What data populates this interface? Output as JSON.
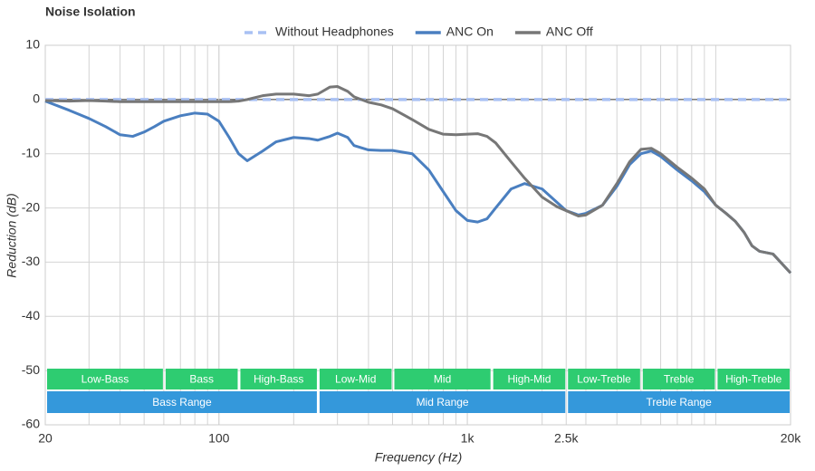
{
  "chart_data": {
    "type": "line",
    "title": "Noise Isolation",
    "xlabel": "Frequency (Hz)",
    "ylabel": "Reduction (dB)",
    "xscale": "log",
    "minor_grid": true,
    "grid": true,
    "xlim": [
      20,
      20000
    ],
    "xticks": [
      20,
      100,
      {
        "value": 1000,
        "label": "1k"
      },
      {
        "value": 2500,
        "label": "2.5k"
      },
      {
        "value": 20000,
        "label": "20k"
      }
    ],
    "ylim": [
      -60,
      10
    ],
    "yticks": [
      10,
      0,
      -10,
      -20,
      -30,
      -40,
      -50,
      -60
    ],
    "legend": "top",
    "x": [
      20,
      25,
      30,
      35,
      40,
      45,
      50,
      55,
      60,
      70,
      80,
      90,
      100,
      110,
      120,
      130,
      150,
      170,
      200,
      230,
      250,
      280,
      300,
      330,
      350,
      400,
      450,
      500,
      600,
      700,
      800,
      900,
      1000,
      1100,
      1200,
      1300,
      1500,
      1700,
      2000,
      2300,
      2500,
      2800,
      3000,
      3500,
      4000,
      4500,
      5000,
      5500,
      6000,
      7000,
      8000,
      9000,
      10000,
      11000,
      12000,
      13000,
      14000,
      15000,
      17000,
      20000
    ],
    "series": [
      {
        "name": "Without Headphones",
        "color": "#a9c1f3",
        "dashed": true,
        "values": [
          0,
          0,
          0,
          0,
          0,
          0,
          0,
          0,
          0,
          0,
          0,
          0,
          0,
          0,
          0,
          0,
          0,
          0,
          0,
          0,
          0,
          0,
          0,
          0,
          0,
          0,
          0,
          0,
          0,
          0,
          0,
          0,
          0,
          0,
          0,
          0,
          0,
          0,
          0,
          0,
          0,
          0,
          0,
          0,
          0,
          0,
          0,
          0,
          0,
          0,
          0,
          0,
          0,
          0,
          0,
          0,
          0,
          0,
          0,
          0
        ]
      },
      {
        "name": "ANC On",
        "color": "#4a7fc0",
        "values": [
          -0.3,
          -2,
          -3.5,
          -5,
          -6.5,
          -6.8,
          -6,
          -5,
          -4,
          -3,
          -2.5,
          -2.7,
          -4,
          -7,
          -10,
          -11.3,
          -9.5,
          -7.8,
          -7,
          -7.2,
          -7.5,
          -6.8,
          -6.2,
          -7,
          -8.5,
          -9.3,
          -9.4,
          -9.4,
          -10,
          -13,
          -17,
          -20.5,
          -22.3,
          -22.6,
          -22,
          -20,
          -16.5,
          -15.5,
          -16.5,
          -19,
          -20.5,
          -21.3,
          -21,
          -19.5,
          -16,
          -12,
          -10,
          -9.5,
          -10.5,
          -13,
          -15,
          -17,
          -19.5,
          -21,
          -22.5,
          -24.5,
          -27,
          -28,
          -28.5,
          -32
        ]
      },
      {
        "name": "ANC Off",
        "color": "#777777",
        "values": [
          -0.2,
          -0.3,
          -0.2,
          -0.3,
          -0.4,
          -0.4,
          -0.4,
          -0.4,
          -0.4,
          -0.4,
          -0.4,
          -0.4,
          -0.4,
          -0.4,
          -0.3,
          0,
          0.7,
          1,
          1,
          0.7,
          1,
          2.3,
          2.4,
          1.5,
          0.5,
          -0.5,
          -1,
          -1.7,
          -3.7,
          -5.5,
          -6.4,
          -6.5,
          -6.4,
          -6.3,
          -6.8,
          -8,
          -11.5,
          -14.5,
          -18,
          -19.8,
          -20.5,
          -21.5,
          -21.3,
          -19.5,
          -15.5,
          -11.5,
          -9.2,
          -9,
          -10,
          -12.5,
          -14.5,
          -16.5,
          -19.5,
          -21,
          -22.5,
          -24.5,
          -27,
          -28,
          -28.5,
          -32
        ]
      }
    ],
    "bands": [
      {
        "label": "Low-Bass",
        "from": 20,
        "to": 60
      },
      {
        "label": "Bass",
        "from": 60,
        "to": 120
      },
      {
        "label": "High-Bass",
        "from": 120,
        "to": 250
      },
      {
        "label": "Low-Mid",
        "from": 250,
        "to": 500
      },
      {
        "label": "Mid",
        "from": 500,
        "to": 1250
      },
      {
        "label": "High-Mid",
        "from": 1250,
        "to": 2500
      },
      {
        "label": "Low-Treble",
        "from": 2500,
        "to": 5000
      },
      {
        "label": "Treble",
        "from": 5000,
        "to": 10000
      },
      {
        "label": "High-Treble",
        "from": 10000,
        "to": 20000
      }
    ],
    "ranges": [
      {
        "label": "Bass Range",
        "from": 20,
        "to": 250
      },
      {
        "label": "Mid Range",
        "from": 250,
        "to": 2500
      },
      {
        "label": "Treble Range",
        "from": 2500,
        "to": 20000
      }
    ]
  }
}
